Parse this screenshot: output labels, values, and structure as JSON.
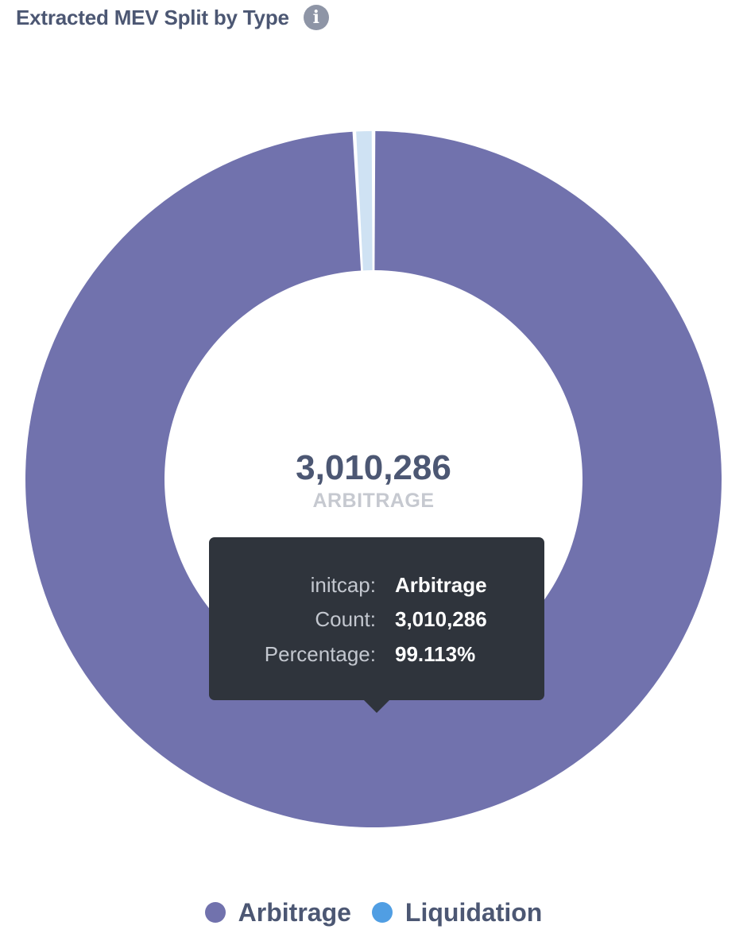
{
  "header": {
    "title": "Extracted MEV Split by Type",
    "info_icon": "info-icon"
  },
  "chart_data": {
    "type": "pie",
    "variant": "donut",
    "title": "Extracted MEV Split by Type",
    "categories": [
      "Arbitrage",
      "Liquidation"
    ],
    "values": [
      3010286,
      26653
    ],
    "colors": [
      "#7172ad",
      "#509ee3"
    ],
    "highlighted": "Arbitrage",
    "center_value": "3,010,286",
    "center_label": "ARBITRAGE",
    "legend": {
      "position": "bottom",
      "items": [
        {
          "label": "Arbitrage",
          "color": "#7172ad"
        },
        {
          "label": "Liquidation",
          "color": "#509ee3"
        }
      ]
    }
  },
  "tooltip": {
    "rows": [
      {
        "key": "initcap:",
        "value": "Arbitrage"
      },
      {
        "key": "Count:",
        "value": "3,010,286"
      },
      {
        "key": "Percentage:",
        "value": "99.113%"
      }
    ]
  },
  "colors": {
    "arbitrage": "#7172ad",
    "liquidation": "#509ee3",
    "liquidation_faded": "#cfe2f3",
    "tooltip_bg": "#2f343c",
    "text": "#4c5773"
  }
}
